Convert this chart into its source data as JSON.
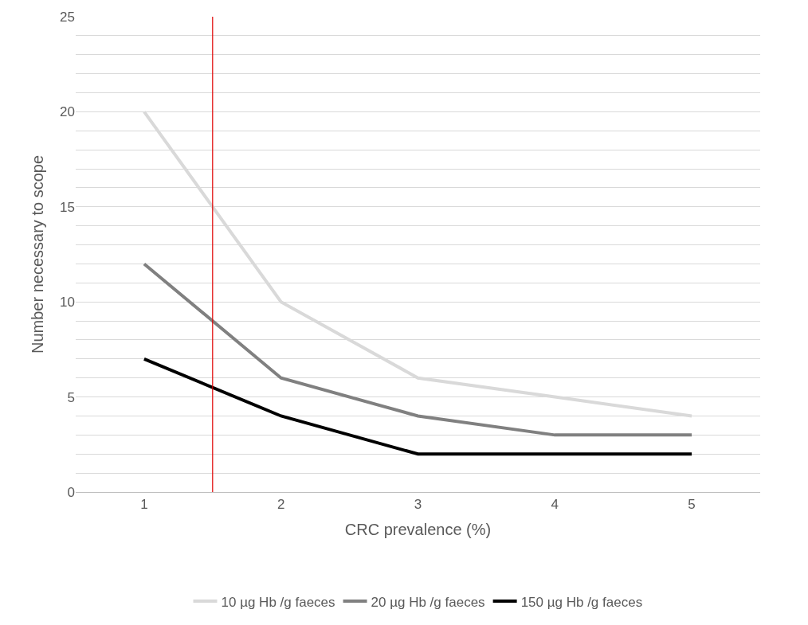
{
  "chart_data": {
    "type": "line",
    "xlabel": "CRC prevalence (%)",
    "ylabel": "Number necessary to scope",
    "x": [
      1,
      2,
      3,
      4,
      5
    ],
    "xlim": [
      0.5,
      5.5
    ],
    "xticks": [
      1,
      2,
      3,
      4,
      5
    ],
    "ylim": [
      0,
      25
    ],
    "yticks": [
      0,
      {
        "value": 1,
        "label": null
      },
      {
        "value": 2,
        "label": null
      },
      {
        "value": 3,
        "label": null
      },
      {
        "value": 4,
        "label": null
      },
      5,
      {
        "value": 6,
        "label": null
      },
      {
        "value": 7,
        "label": null
      },
      {
        "value": 8,
        "label": null
      },
      {
        "value": 9,
        "label": null
      },
      10,
      {
        "value": 11,
        "label": null
      },
      {
        "value": 12,
        "label": null
      },
      {
        "value": 13,
        "label": null
      },
      {
        "value": 14,
        "label": null
      },
      15,
      {
        "value": 16,
        "label": null
      },
      {
        "value": 17,
        "label": null
      },
      {
        "value": 18,
        "label": null
      },
      {
        "value": 19,
        "label": null
      },
      20,
      {
        "value": 21,
        "label": null
      },
      {
        "value": 22,
        "label": null
      },
      {
        "value": 23,
        "label": null
      },
      {
        "value": 24,
        "label": null
      },
      25
    ],
    "series": [
      {
        "name": "10 µg Hb /g faeces",
        "color": "#d9d9d9",
        "values": [
          20,
          10,
          6,
          5,
          4
        ]
      },
      {
        "name": "20 µg Hb /g faeces",
        "color": "#808080",
        "values": [
          12,
          6,
          4,
          3,
          3
        ]
      },
      {
        "name": "150 µg Hb /g faeces",
        "color": "#000000",
        "values": [
          7,
          4,
          2,
          2,
          2
        ]
      }
    ],
    "ref_lines": [
      {
        "axis": "x",
        "value": 1.5,
        "color": "#e00000"
      }
    ],
    "grid": "y",
    "legend": "bottom",
    "marker": "none",
    "line_style": "solid"
  }
}
